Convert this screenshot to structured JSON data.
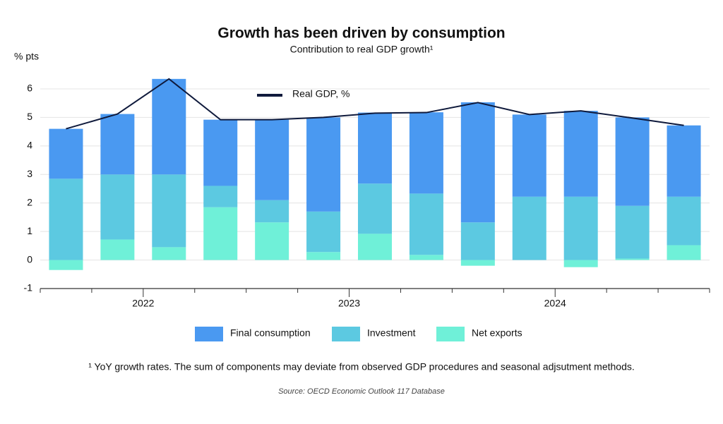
{
  "chart_data": {
    "type": "stacked_bar_line",
    "title": "Growth has been driven by consumption",
    "subtitle": "Contribution to real GDP growth¹",
    "y_axis_label": "% pts",
    "categories": [
      null,
      null,
      "2022",
      null,
      null,
      null,
      "2023",
      null,
      null,
      null,
      "2024",
      null,
      null
    ],
    "series": [
      {
        "name": "Net exports",
        "color": "#6ff0d8",
        "values": [
          -0.35,
          0.72,
          0.45,
          1.85,
          1.32,
          0.28,
          0.92,
          0.18,
          -0.2,
          0,
          -0.25,
          0.05,
          0.52
        ]
      },
      {
        "name": "Investment",
        "color": "#5cc9e1",
        "values": [
          2.85,
          2.28,
          2.55,
          0.75,
          0.78,
          1.42,
          1.76,
          2.15,
          1.32,
          2.22,
          2.22,
          1.85,
          1.7
        ]
      },
      {
        "name": "Final consumption",
        "color": "#4a99f1",
        "values": [
          1.75,
          2.12,
          3.35,
          2.32,
          2.82,
          3.3,
          2.49,
          2.85,
          4.21,
          2.88,
          3.01,
          3.1,
          2.5
        ]
      }
    ],
    "line": {
      "name": "Real GDP, %",
      "color": "#0f1a3c",
      "values": [
        4.6,
        5.12,
        6.35,
        4.92,
        4.92,
        5.0,
        5.15,
        5.17,
        5.52,
        5.1,
        5.23,
        4.98,
        4.72
      ]
    },
    "ylim": [
      -1,
      6.5
    ],
    "yticks": [
      -1,
      0,
      1,
      2,
      3,
      4,
      5,
      6
    ],
    "grid": true,
    "footnote": "¹ YoY growth rates. The sum of components may deviate from observed GDP procedures and seasonal adjsutment methods.",
    "source": "Source: OECD Economic Outlook 117 Database"
  }
}
